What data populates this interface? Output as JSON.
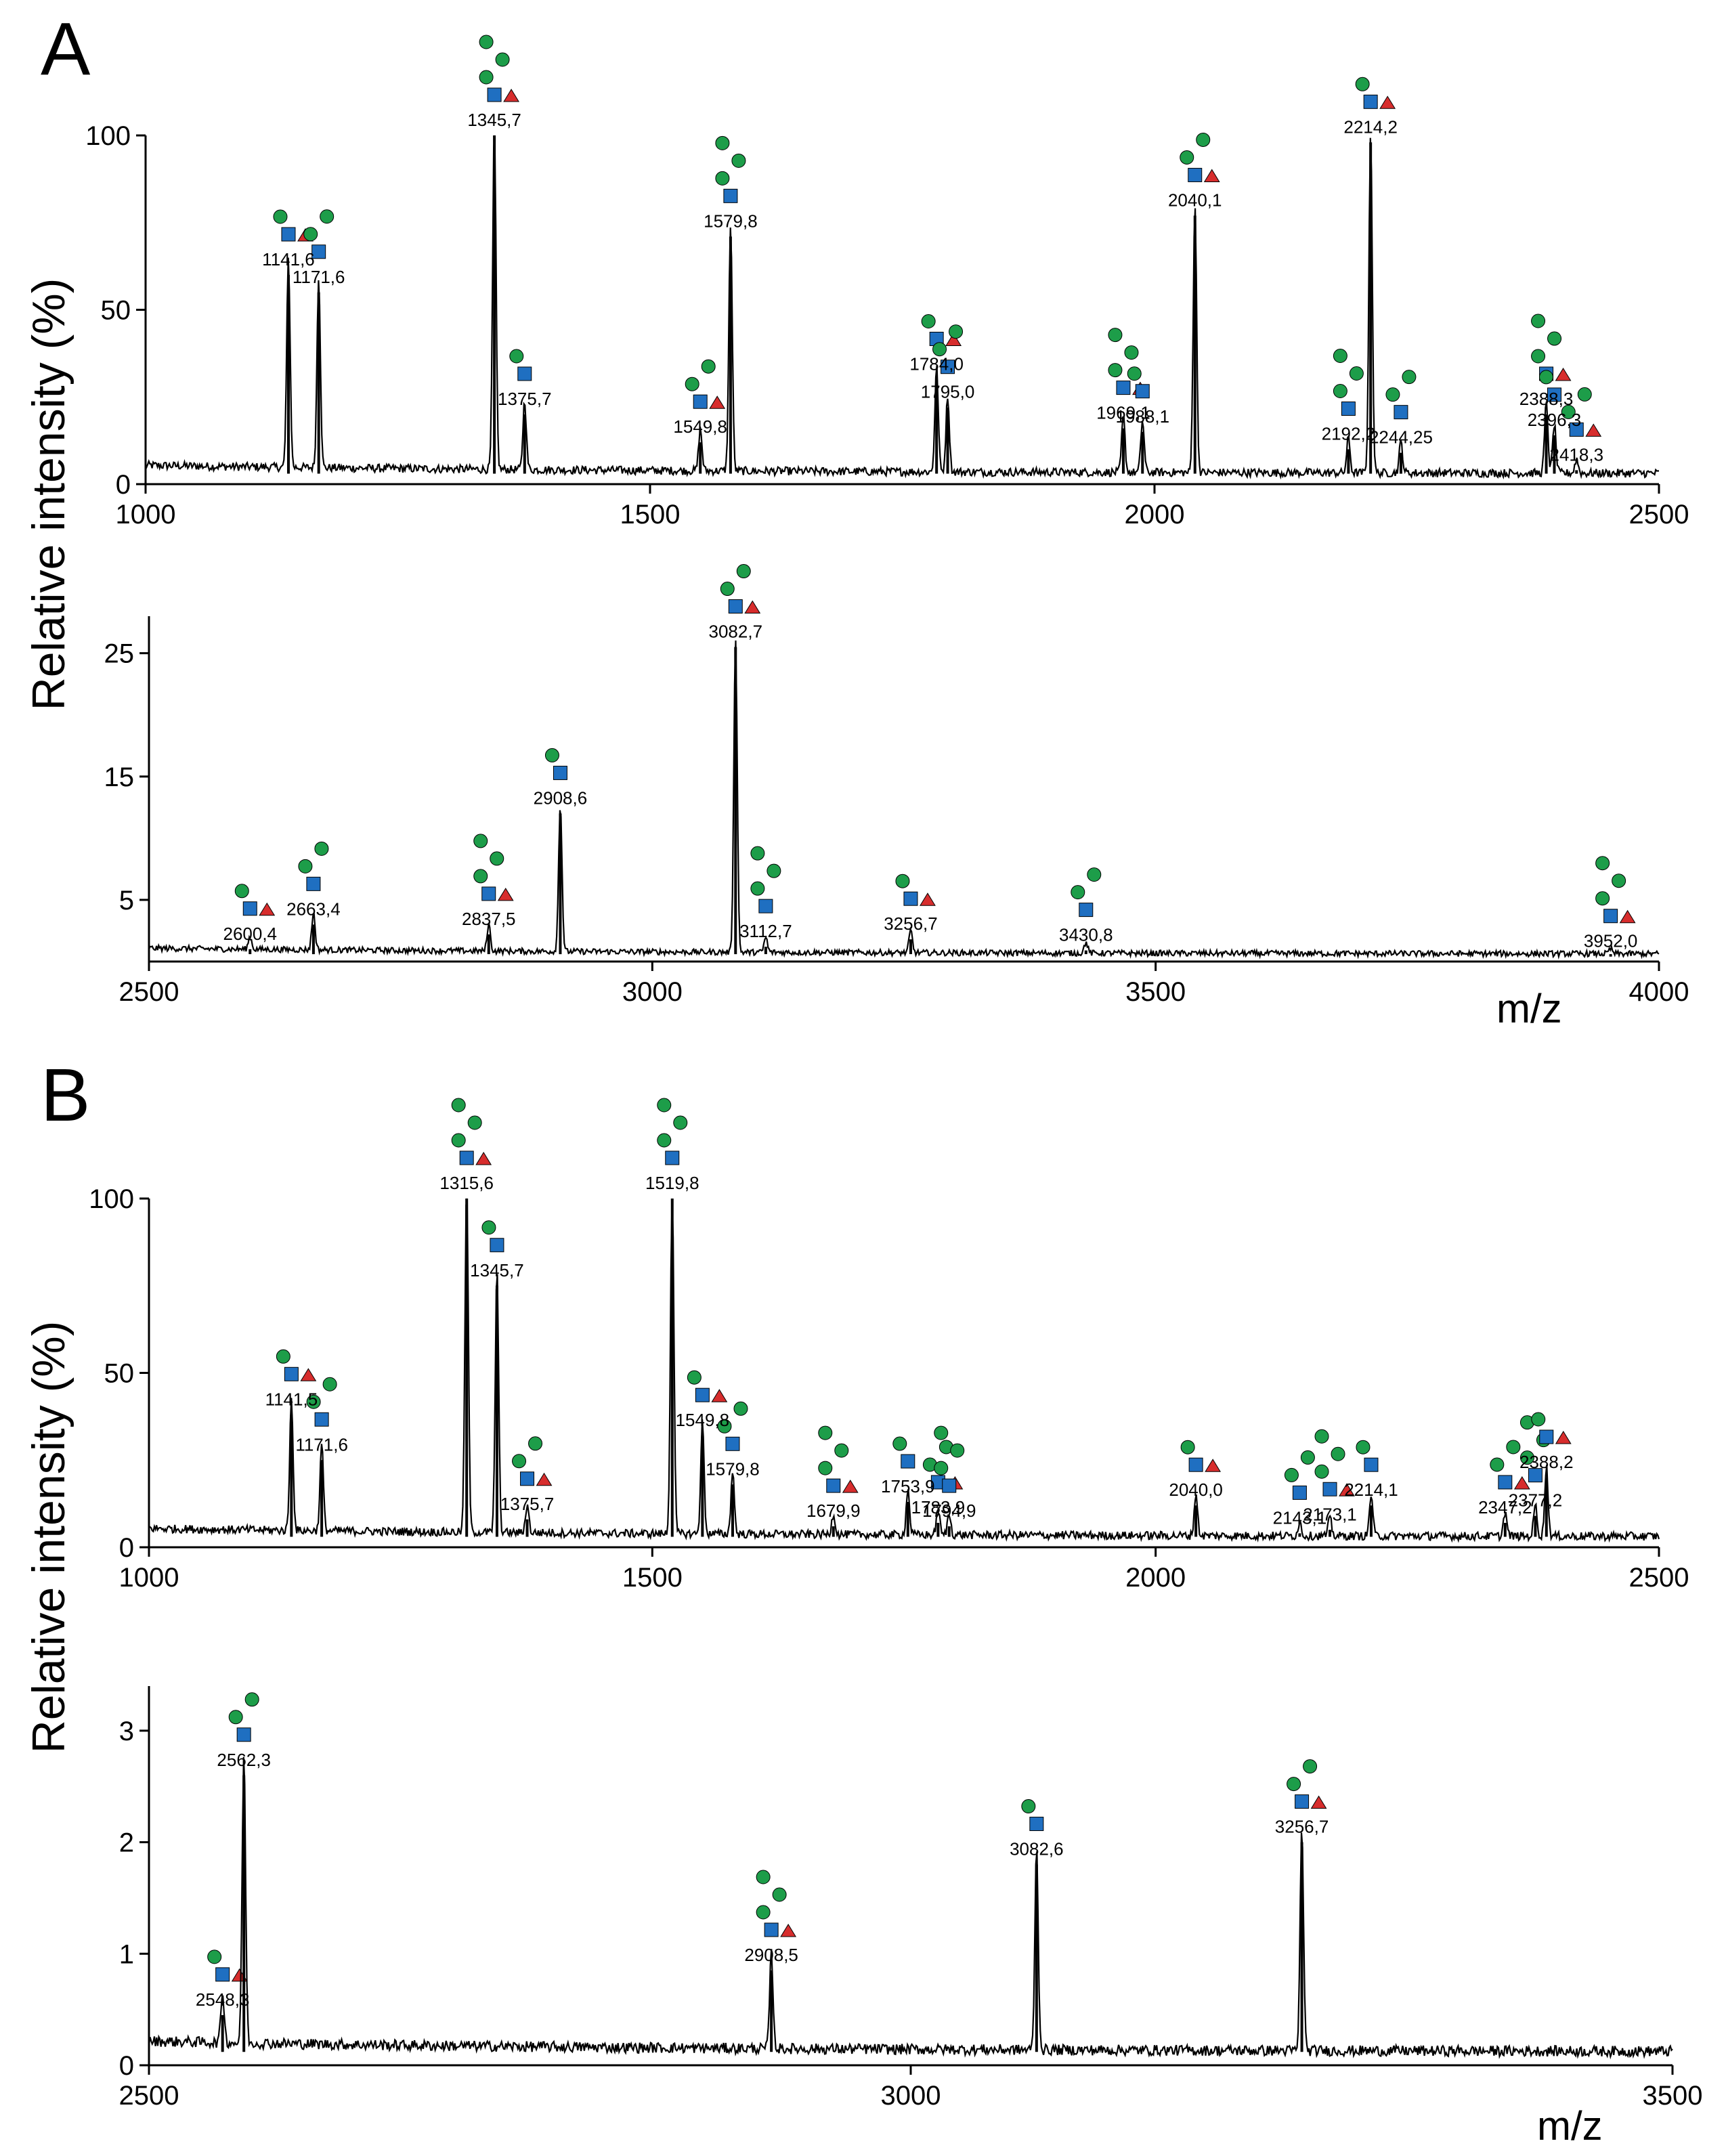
{
  "figure": {
    "panel_A": "A",
    "panel_B": "B",
    "ylabel": "Relative intensity (%)",
    "xunit": "m/z"
  },
  "colors": {
    "line": "#000000",
    "glc_green": "#1d9d49",
    "glcnac_blue": "#1f6fc1",
    "gal_yellow": "#f7d000",
    "galnac_yellow": "#f2c200",
    "fuc_red": "#d72d2d",
    "neuac_blue": "#2a5aa8"
  },
  "chart_data": [
    {
      "id": "A1",
      "type": "line",
      "title": "A",
      "xlabel": "",
      "ylabel": "Relative intensity (%)",
      "xlim": [
        1000,
        2500
      ],
      "ylim": [
        0,
        100
      ],
      "xticks": [
        1000,
        1500,
        2000,
        2500
      ],
      "yticks": [
        0,
        50,
        100
      ],
      "baseline": 3,
      "peaks": [
        {
          "x": 1141.6,
          "y": 60,
          "label": "1141,6"
        },
        {
          "x": 1171.6,
          "y": 55,
          "label": "1171,6"
        },
        {
          "x": 1345.7,
          "y": 100,
          "label": "1345,7"
        },
        {
          "x": 1375.7,
          "y": 20,
          "label": "1375,7"
        },
        {
          "x": 1549.8,
          "y": 12,
          "label": "1549,8"
        },
        {
          "x": 1579.8,
          "y": 71,
          "label": "1579,8"
        },
        {
          "x": 1784.0,
          "y": 30,
          "label": "1784,0"
        },
        {
          "x": 1795.0,
          "y": 22,
          "label": "1795,0"
        },
        {
          "x": 1969.1,
          "y": 16,
          "label": "1969,1"
        },
        {
          "x": 1988.1,
          "y": 15,
          "label": "1988,1"
        },
        {
          "x": 2040.1,
          "y": 77,
          "label": "2040,1"
        },
        {
          "x": 2192.2,
          "y": 10,
          "label": "2192,2"
        },
        {
          "x": 2214.2,
          "y": 98,
          "label": "2214,2"
        },
        {
          "x": 2244.25,
          "y": 9,
          "label": "2244,25"
        },
        {
          "x": 2388.3,
          "y": 20,
          "label": "2388,3"
        },
        {
          "x": 2396.3,
          "y": 14,
          "label": "2396,3"
        },
        {
          "x": 2418.3,
          "y": 4,
          "label": "2418,3"
        }
      ]
    },
    {
      "id": "A2",
      "type": "line",
      "title": "",
      "xlabel": "m/z",
      "ylabel": "",
      "xlim": [
        2500,
        4000
      ],
      "ylim": [
        0,
        28
      ],
      "xticks": [
        2500,
        3000,
        3500,
        4000
      ],
      "yticks": [
        5,
        15,
        25
      ],
      "baseline": 0.6,
      "peaks": [
        {
          "x": 2600.4,
          "y": 1,
          "label": "2600,4"
        },
        {
          "x": 2663.4,
          "y": 3,
          "label": "2663,4"
        },
        {
          "x": 2837.5,
          "y": 2.2,
          "label": "2837,5"
        },
        {
          "x": 2908.6,
          "y": 12,
          "label": "2908,6"
        },
        {
          "x": 3082.7,
          "y": 25.5,
          "label": "3082,7"
        },
        {
          "x": 3112.7,
          "y": 1.2,
          "label": "3112,7"
        },
        {
          "x": 3256.7,
          "y": 1.8,
          "label": "3256,7"
        },
        {
          "x": 3430.8,
          "y": 0.9,
          "label": "3430,8"
        },
        {
          "x": 3952.0,
          "y": 0.4,
          "label": "3952,0"
        }
      ]
    },
    {
      "id": "B1",
      "type": "line",
      "title": "B",
      "xlabel": "",
      "ylabel": "Relative intensity (%)",
      "xlim": [
        1000,
        2500
      ],
      "ylim": [
        0,
        100
      ],
      "xticks": [
        1000,
        1500,
        2000,
        2500
      ],
      "yticks": [
        0,
        50,
        100
      ],
      "baseline": 3,
      "peaks": [
        {
          "x": 1141.5,
          "y": 38,
          "label": "1141,5"
        },
        {
          "x": 1171.6,
          "y": 25,
          "label": "1171,6"
        },
        {
          "x": 1315.6,
          "y": 100,
          "label": "1315,6"
        },
        {
          "x": 1345.7,
          "y": 75,
          "label": "1345,7"
        },
        {
          "x": 1375.7,
          "y": 8,
          "label": "1375,7"
        },
        {
          "x": 1519.8,
          "y": 100,
          "label": "1519,8"
        },
        {
          "x": 1549.8,
          "y": 32,
          "label": "1549,8"
        },
        {
          "x": 1579.8,
          "y": 18,
          "label": "1579,8"
        },
        {
          "x": 1679.9,
          "y": 6,
          "label": "1679,9"
        },
        {
          "x": 1753.9,
          "y": 13,
          "label": "1753,9"
        },
        {
          "x": 1783.9,
          "y": 7,
          "label": "1783,9"
        },
        {
          "x": 1794.9,
          "y": 6,
          "label": "1794,9"
        },
        {
          "x": 2040.0,
          "y": 12,
          "label": "2040,0"
        },
        {
          "x": 2143.1,
          "y": 4,
          "label": "2143,1"
        },
        {
          "x": 2173.1,
          "y": 5,
          "label": "2173,1"
        },
        {
          "x": 2214.1,
          "y": 12,
          "label": "2214,1"
        },
        {
          "x": 2347.2,
          "y": 7,
          "label": "2347,2"
        },
        {
          "x": 2377.2,
          "y": 9,
          "label": "2377,2"
        },
        {
          "x": 2388.2,
          "y": 20,
          "label": "2388,2"
        }
      ]
    },
    {
      "id": "B2",
      "type": "line",
      "title": "",
      "xlabel": "m/z",
      "ylabel": "Relative intensity (%)",
      "xlim": [
        2500,
        3500
      ],
      "ylim": [
        0,
        3.4
      ],
      "xticks": [
        2500,
        3000,
        3500
      ],
      "yticks": [
        0,
        1,
        2,
        3
      ],
      "baseline": 0.12,
      "peaks": [
        {
          "x": 2548.3,
          "y": 0.45,
          "label": "2548,3"
        },
        {
          "x": 2562.3,
          "y": 2.6,
          "label": "2562,3"
        },
        {
          "x": 2908.5,
          "y": 0.85,
          "label": "2908,5"
        },
        {
          "x": 3082.6,
          "y": 1.8,
          "label": "3082,6"
        },
        {
          "x": 3256.7,
          "y": 2.0,
          "label": "3256,7"
        }
      ]
    }
  ]
}
